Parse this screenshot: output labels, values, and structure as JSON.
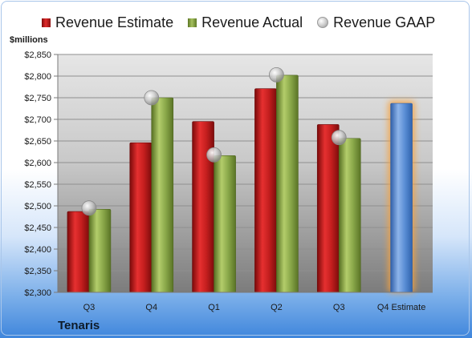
{
  "chart_data": {
    "type": "bar",
    "categories": [
      "Q3",
      "Q4",
      "Q1",
      "Q2",
      "Q3",
      "Q4 Estimate"
    ],
    "series": [
      {
        "name": "Revenue Estimate",
        "values": [
          2487,
          2646,
          2695,
          2771,
          2688,
          2737
        ]
      },
      {
        "name": "Revenue Actual",
        "values": [
          2492,
          2750,
          2616,
          2802,
          2656,
          null
        ]
      },
      {
        "name": "Revenue GAAP",
        "values": [
          2495,
          2750,
          2618,
          2803,
          2658,
          null
        ]
      }
    ],
    "ylabel": "$millions",
    "ylim": [
      2300,
      2850
    ],
    "yticks": [
      2300,
      2350,
      2400,
      2450,
      2500,
      2550,
      2600,
      2650,
      2700,
      2750,
      2800,
      2850
    ],
    "ytick_labels": [
      "$2,300",
      "$2,350",
      "$2,400",
      "$2,450",
      "$2,500",
      "$2,550",
      "$2,600",
      "$2,650",
      "$2,700",
      "$2,750",
      "$2,800",
      "$2,850"
    ],
    "grid": true,
    "legend_position": "top",
    "highlighted_category": "Q4 Estimate"
  },
  "company": "Tenaris",
  "colors": {
    "estimate": "#c41e1e",
    "actual": "#8aa84a",
    "gaap": "#c8c8c8",
    "estimate_future": "#5b8fd6",
    "highlight_glow": "#f7a23c"
  }
}
